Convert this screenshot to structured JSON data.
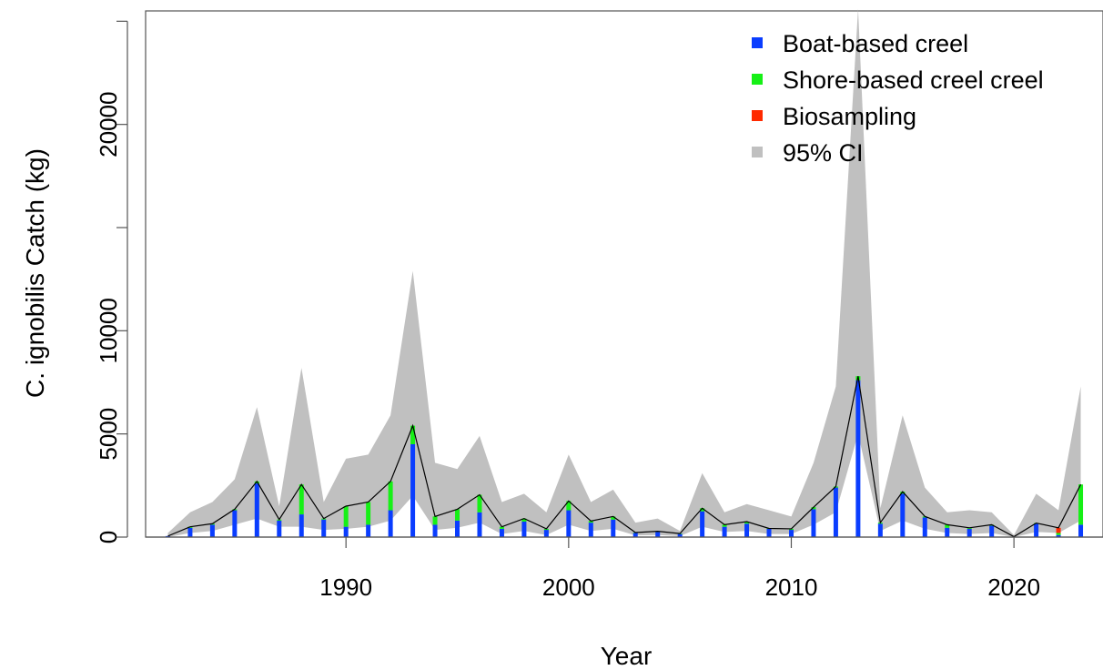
{
  "chart_data": {
    "type": "bar",
    "title": "",
    "xlabel": "Year",
    "ylabel": "C. ignobilis Catch (kg)",
    "xlim": [
      1981,
      2024
    ],
    "ylim": [
      0,
      25500
    ],
    "xticks": [
      1990,
      2000,
      2010,
      2020
    ],
    "yticks": [
      0,
      5000,
      10000,
      15000,
      20000,
      25000
    ],
    "ytick_labels": [
      "0",
      "5000",
      "10000",
      "",
      "20000",
      ""
    ],
    "stacked": true,
    "legend_position": "top-right",
    "grid": false,
    "colors": {
      "boat": "#0a3dff",
      "shore": "#16f016",
      "bio": "#ff2a00",
      "ci": "#c0c0c0",
      "line": "#000000"
    },
    "years": [
      1982,
      1983,
      1984,
      1985,
      1986,
      1987,
      1988,
      1989,
      1990,
      1991,
      1992,
      1993,
      1994,
      1995,
      1996,
      1997,
      1998,
      1999,
      2000,
      2001,
      2002,
      2003,
      2004,
      2005,
      2006,
      2007,
      2008,
      2009,
      2010,
      2011,
      2012,
      2013,
      2014,
      2015,
      2016,
      2017,
      2018,
      2019,
      2020,
      2021,
      2022,
      2023
    ],
    "series": [
      {
        "name": "Boat-based creel",
        "key": "boat",
        "values": [
          50,
          450,
          600,
          1300,
          2600,
          800,
          1100,
          850,
          500,
          600,
          1300,
          4500,
          600,
          800,
          1200,
          400,
          750,
          350,
          1300,
          700,
          850,
          200,
          250,
          150,
          1250,
          500,
          650,
          400,
          350,
          1350,
          2400,
          7600,
          650,
          2100,
          950,
          450,
          400,
          550,
          20,
          650,
          100,
          600
        ]
      },
      {
        "name": "Shore-based creel creel",
        "key": "shore",
        "values": [
          0,
          50,
          50,
          50,
          100,
          50,
          1450,
          50,
          1000,
          1100,
          1400,
          900,
          400,
          550,
          850,
          100,
          150,
          50,
          450,
          80,
          150,
          20,
          30,
          20,
          150,
          100,
          100,
          20,
          50,
          100,
          50,
          200,
          50,
          100,
          50,
          150,
          50,
          50,
          0,
          30,
          100,
          1950
        ]
      },
      {
        "name": "Biosampling",
        "key": "bio",
        "values": [
          0,
          0,
          0,
          0,
          0,
          0,
          0,
          0,
          0,
          0,
          0,
          0,
          0,
          0,
          0,
          0,
          0,
          0,
          0,
          0,
          0,
          0,
          0,
          0,
          0,
          0,
          0,
          0,
          0,
          0,
          0,
          0,
          0,
          0,
          0,
          0,
          0,
          0,
          0,
          0,
          250,
          0
        ]
      }
    ],
    "ci": {
      "name": "95% CI",
      "lower": [
        0,
        200,
        300,
        600,
        900,
        500,
        500,
        350,
        400,
        500,
        800,
        2000,
        350,
        450,
        700,
        150,
        300,
        100,
        600,
        300,
        400,
        80,
        100,
        50,
        500,
        250,
        300,
        150,
        150,
        600,
        1200,
        5000,
        300,
        800,
        400,
        200,
        150,
        200,
        0,
        250,
        200,
        800
      ],
      "upper": [
        200,
        1200,
        1700,
        2800,
        6300,
        1500,
        8200,
        1700,
        3800,
        4000,
        5900,
        12900,
        3600,
        3300,
        4900,
        1700,
        2100,
        1200,
        4000,
        1700,
        2300,
        700,
        900,
        300,
        3100,
        1200,
        1600,
        1300,
        1000,
        3600,
        7300,
        25600,
        1400,
        5900,
        2400,
        1200,
        1300,
        1200,
        100,
        2100,
        1300,
        7300
      ]
    },
    "total_line": {
      "values": [
        50,
        500,
        650,
        1350,
        2700,
        850,
        2550,
        900,
        1500,
        1700,
        2700,
        5400,
        1000,
        1350,
        2050,
        500,
        900,
        400,
        1750,
        780,
        1000,
        220,
        280,
        170,
        1400,
        600,
        750,
        420,
        400,
        1450,
        2450,
        7800,
        700,
        2200,
        1000,
        600,
        450,
        600,
        20,
        680,
        450,
        2550
      ]
    }
  }
}
